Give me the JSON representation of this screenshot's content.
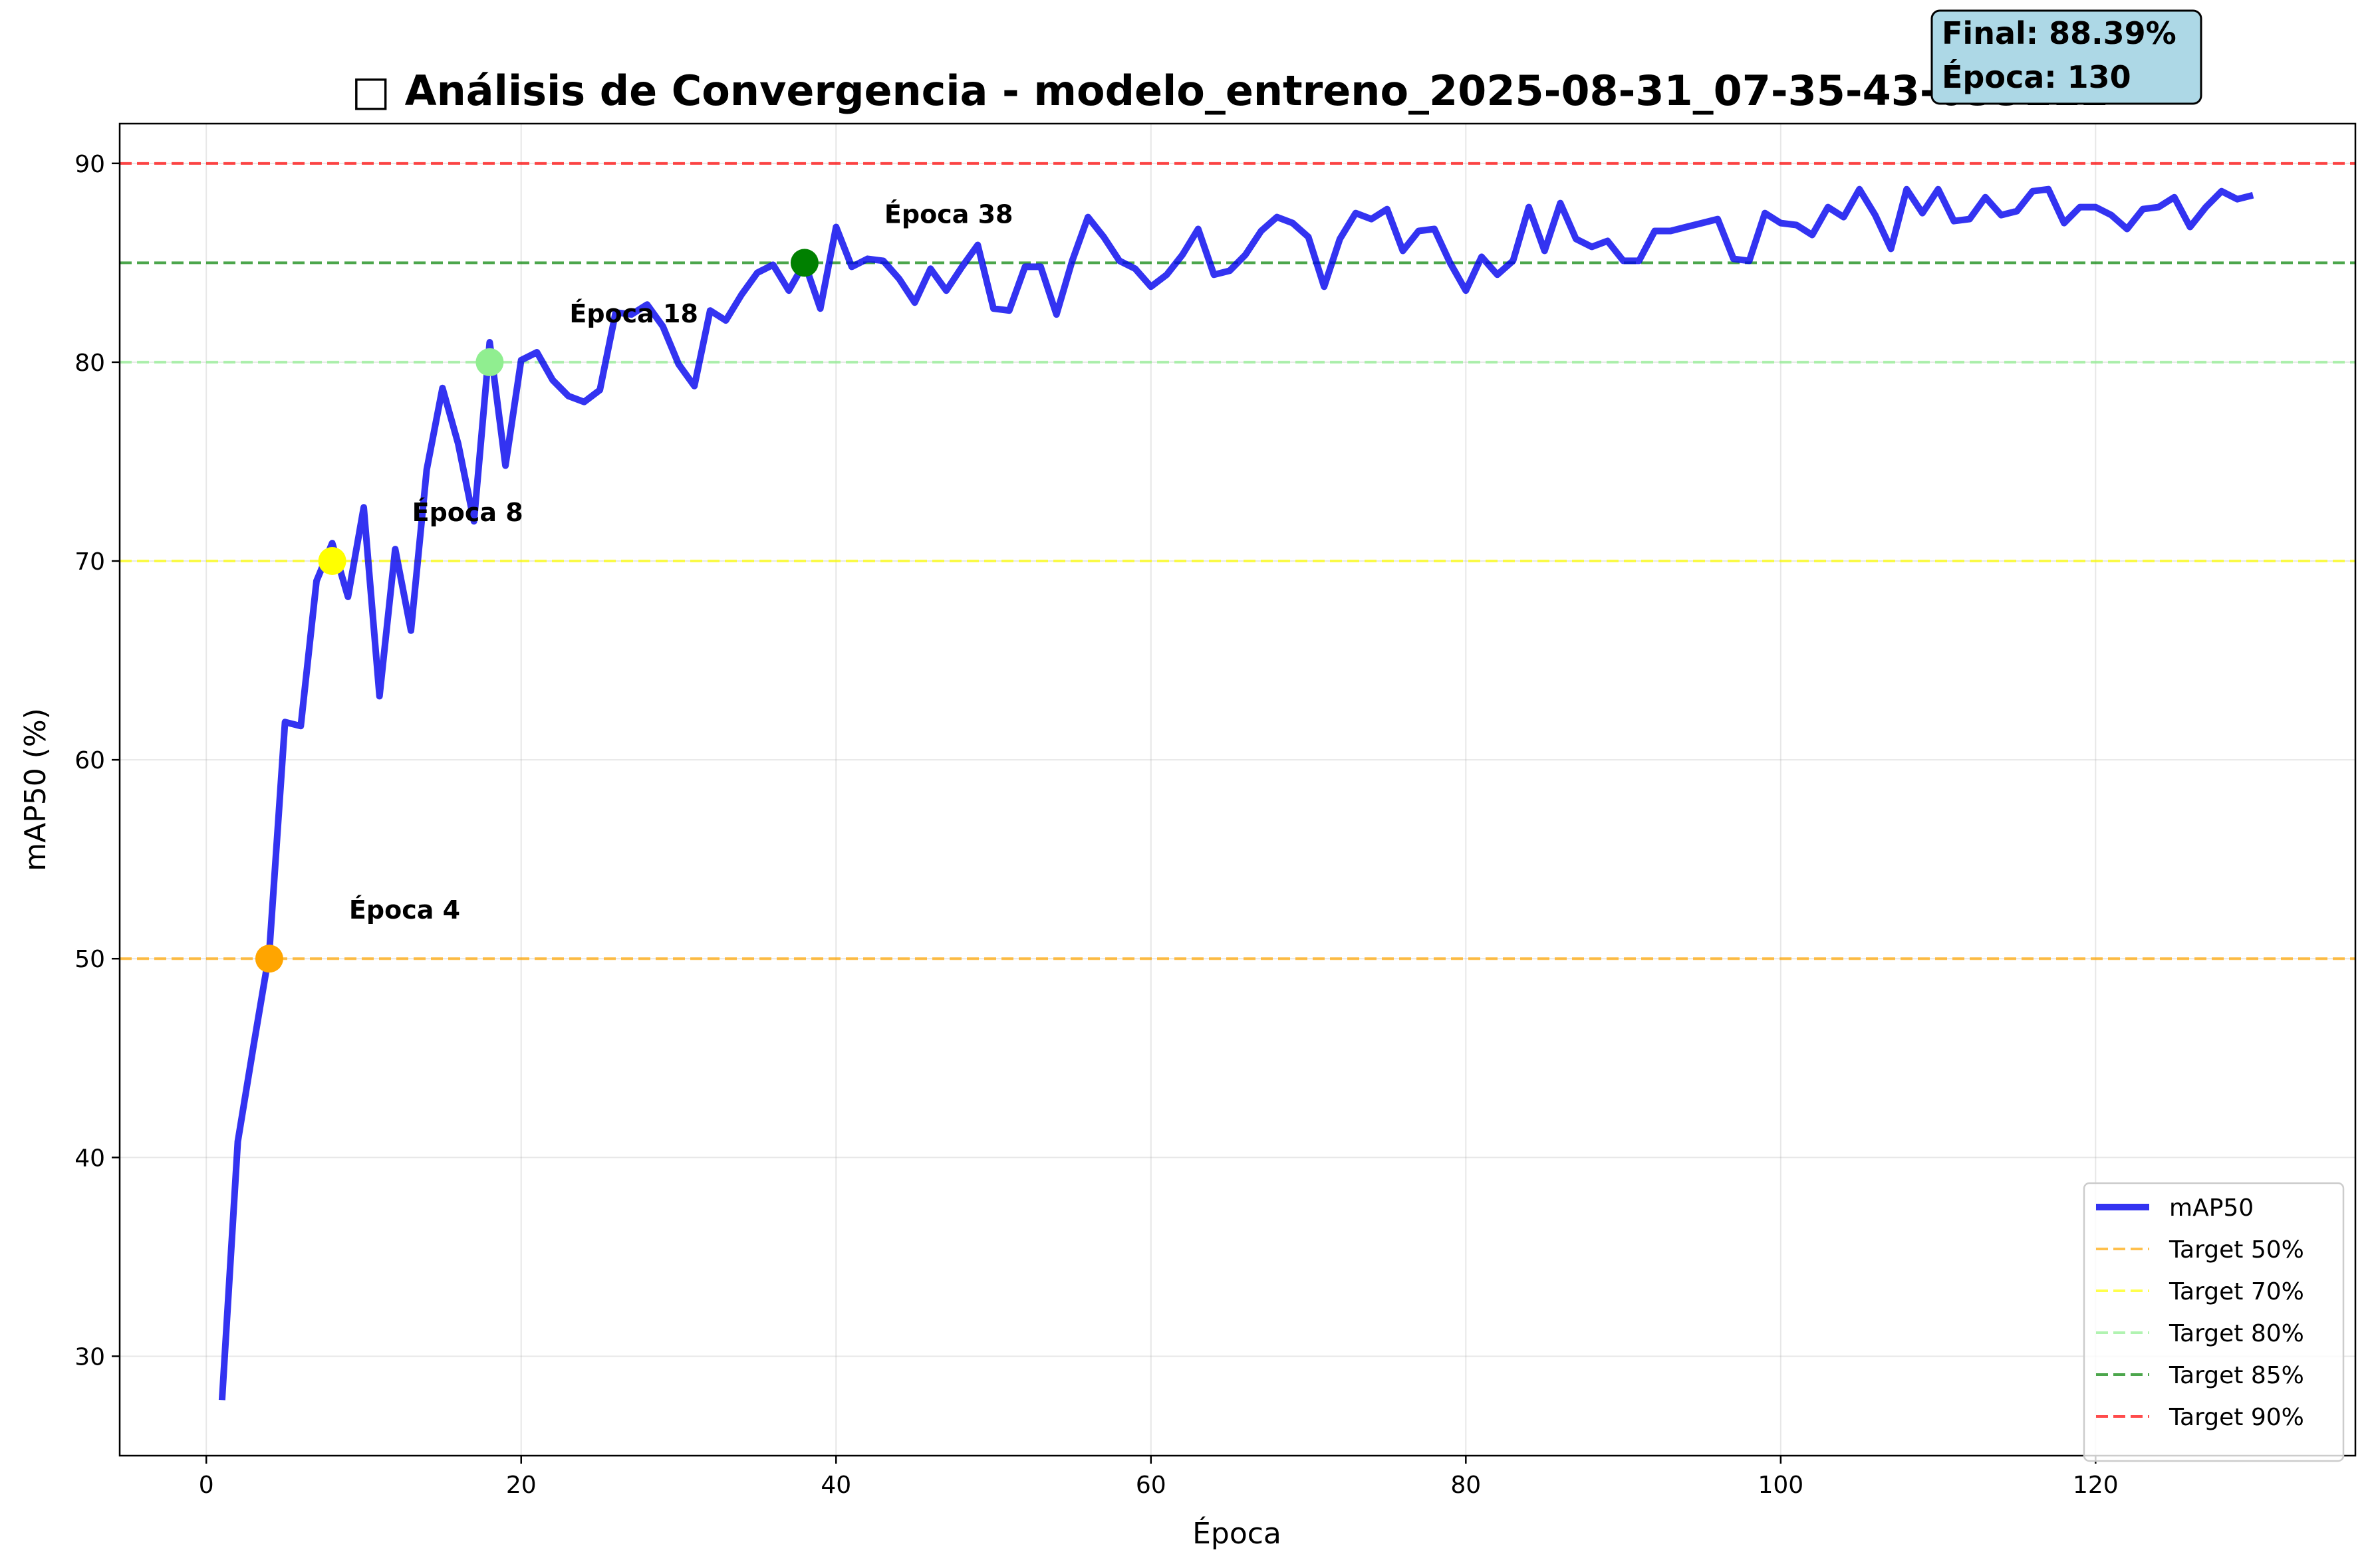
{
  "chart_data": {
    "type": "line",
    "title": "□ Análisis de Convergencia - modelo_entreno_2025-08-31_07-35-43-033112",
    "xlabel": "Época",
    "ylabel": "mAP50 (%)",
    "xlim": [
      -5.5,
      136.5
    ],
    "ylim": [
      25,
      92
    ],
    "xticks": [
      0,
      20,
      40,
      60,
      80,
      100,
      120
    ],
    "yticks": [
      30,
      40,
      50,
      60,
      70,
      80,
      90
    ],
    "grid": true,
    "legend_position": "lower right",
    "series": [
      {
        "name": "mAP50",
        "color": "#0000ee",
        "x": [
          1,
          2,
          3,
          4,
          5,
          6,
          7,
          8,
          9,
          10,
          11,
          12,
          13,
          14,
          15,
          16,
          17,
          18,
          19,
          20,
          21,
          22,
          23,
          24,
          25,
          26,
          27,
          28,
          29,
          30,
          31,
          32,
          33,
          34,
          35,
          36,
          37,
          38,
          39,
          40,
          41,
          42,
          43,
          44,
          45,
          46,
          47,
          48,
          49,
          50,
          51,
          52,
          53,
          54,
          55,
          56,
          57,
          58,
          59,
          60,
          61,
          62,
          63,
          64,
          65,
          66,
          67,
          68,
          69,
          70,
          71,
          72,
          73,
          74,
          75,
          76,
          77,
          78,
          79,
          80,
          81,
          82,
          83,
          84,
          85,
          86,
          87,
          88,
          89,
          90,
          91,
          92,
          93,
          94,
          95,
          96,
          97,
          98,
          99,
          100,
          101,
          102,
          103,
          104,
          105,
          106,
          107,
          108,
          109,
          110,
          111,
          112,
          113,
          114,
          115,
          116,
          117,
          118,
          119,
          120,
          121,
          122,
          123,
          124,
          125,
          126,
          127,
          128,
          129,
          130
        ],
        "values": [
          27.8,
          40.8,
          45.6,
          50.3,
          61.9,
          61.7,
          69.0,
          70.9,
          68.2,
          72.7,
          63.2,
          70.6,
          66.5,
          74.6,
          78.7,
          75.9,
          72.0,
          81.0,
          74.8,
          80.1,
          80.5,
          79.1,
          78.3,
          78.0,
          78.6,
          82.5,
          82.4,
          82.9,
          81.8,
          79.9,
          78.8,
          82.6,
          82.1,
          83.4,
          84.5,
          84.9,
          83.6,
          85.0,
          82.7,
          86.8,
          84.8,
          85.2,
          85.1,
          84.2,
          83.0,
          84.7,
          83.6,
          84.8,
          85.9,
          82.7,
          82.6,
          84.8,
          84.8,
          82.4,
          85.1,
          87.3,
          86.3,
          85.1,
          84.7,
          83.8,
          84.4,
          85.4,
          86.7,
          84.4,
          84.6,
          85.4,
          86.6,
          87.3,
          87.0,
          86.3,
          83.8,
          86.2,
          87.5,
          87.2,
          87.7,
          85.6,
          86.6,
          86.7,
          85.0,
          83.6,
          85.3,
          84.4,
          85.1,
          87.8,
          85.6,
          88.0,
          86.2,
          85.8,
          86.1,
          85.1,
          85.1,
          86.6,
          86.6,
          86.8,
          87.0,
          87.2,
          85.2,
          85.1,
          87.5,
          87.0,
          86.9,
          86.4,
          87.8,
          87.3,
          88.7,
          87.4,
          85.7,
          88.7,
          87.5,
          88.7,
          87.1,
          87.2,
          88.3,
          87.4,
          87.6,
          88.6,
          88.7,
          87.0,
          87.8,
          87.8,
          87.4,
          86.7,
          87.7,
          87.8,
          88.3,
          86.8,
          87.8,
          88.6,
          88.2,
          88.4
        ]
      }
    ],
    "targets": [
      {
        "name": "Target 50%",
        "value": 50,
        "color": "#ffa500"
      },
      {
        "name": "Target 70%",
        "value": 70,
        "color": "#ffff00"
      },
      {
        "name": "Target 80%",
        "value": 80,
        "color": "#90ee90"
      },
      {
        "name": "Target 85%",
        "value": 85,
        "color": "#008000"
      },
      {
        "name": "Target 90%",
        "value": 90,
        "color": "#ff0000"
      }
    ],
    "milestones": [
      {
        "epoch": 4,
        "value": 50,
        "color": "#ffa500",
        "label": "Época 4"
      },
      {
        "epoch": 8,
        "value": 70,
        "color": "#ffff00",
        "label": "Época 8"
      },
      {
        "epoch": 18,
        "value": 80,
        "color": "#90ee90",
        "label": "Época 18"
      },
      {
        "epoch": 38,
        "value": 85,
        "color": "#008000",
        "label": "Época 38"
      }
    ],
    "final_box": {
      "line1": "Final: 88.39%",
      "line2": "Época: 130",
      "bg": "#add8e6"
    }
  }
}
